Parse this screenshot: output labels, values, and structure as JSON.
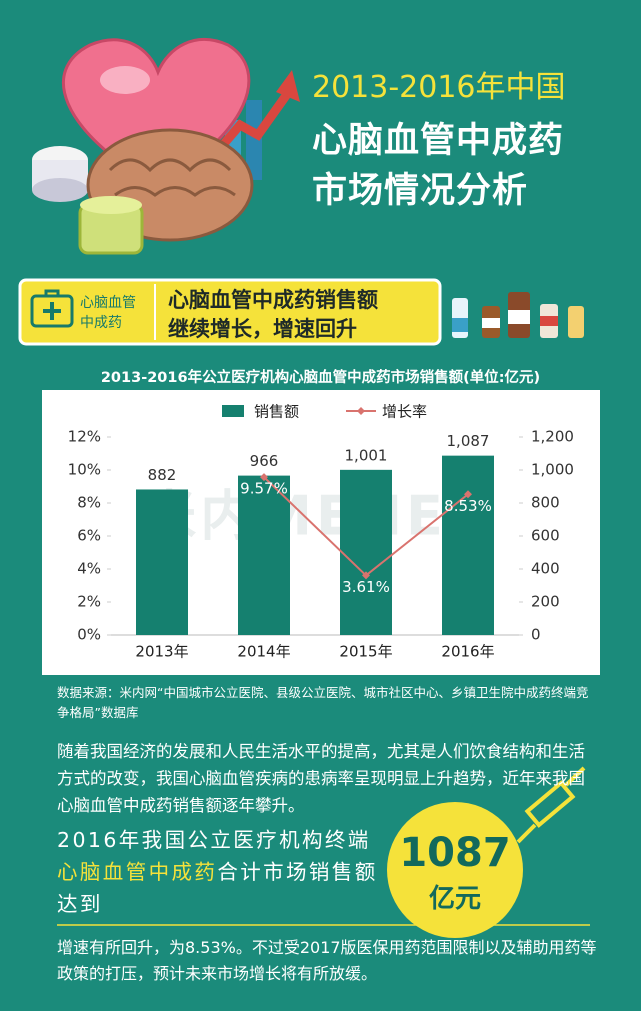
{
  "header": {
    "title_line1": "2013-2016年中国",
    "title_line2": "心脑血管中成药",
    "title_line3": "市场情况分析"
  },
  "banner": {
    "label_lines": [
      "心脑血管",
      "中成药"
    ],
    "headline_lines": [
      "心脑血管中成药销售额",
      "继续增长，增速回升"
    ]
  },
  "chart_data": {
    "type": "bar",
    "title": "2013-2016年公立医疗机构心脑血管中成药市场销售额(单位:亿元)",
    "categories": [
      "2013年",
      "2014年",
      "2015年",
      "2016年"
    ],
    "series": [
      {
        "name": "销售额",
        "type": "bar",
        "axis": "y2",
        "color": "#15806f",
        "values": [
          882,
          966,
          1001,
          1087
        ],
        "value_labels": [
          "882",
          "966",
          "1,001",
          "1,087"
        ]
      },
      {
        "name": "增长率",
        "type": "line",
        "color": "#d9736e",
        "values": [
          null,
          9.57,
          3.61,
          8.53
        ],
        "value_labels": [
          null,
          "9.57%",
          "3.61%",
          "8.53%"
        ]
      }
    ],
    "ylim": [
      0,
      12
    ],
    "yticks": [
      {
        "value": 0,
        "label": "0%"
      },
      {
        "value": 2,
        "label": "2%"
      },
      {
        "value": 4,
        "label": "4%"
      },
      {
        "value": 6,
        "label": "6%"
      },
      {
        "value": 8,
        "label": "8%"
      },
      {
        "value": 10,
        "label": "10%"
      },
      {
        "value": 12,
        "label": "12%"
      }
    ],
    "y2lim": [
      0,
      1200
    ],
    "y2ticks": [
      0,
      200,
      400,
      600,
      800,
      {
        "value": 1000,
        "label": "1,000"
      },
      {
        "value": 1200,
        "label": "1,200"
      }
    ],
    "legend": "top",
    "grid": false,
    "watermark": "米内MENET"
  },
  "source": "数据来源：米内网“中国城市公立医院、县级公立医院、城市社区中心、乡镇卫生院中成药终端竞争格局”数据库",
  "paragraph1": "随着我国经济的发展和人民生活水平的提高，尤其是人们饮食结构和生活方式的改变，我国心脑血管疾病的患病率呈现明显上升趋势，近年来我国心脑血管中成药销售额逐年攀升。",
  "highlight": {
    "before": "2016年我国公立医疗机构终端",
    "emphasis": "心脑血管中成药",
    "after": "合计市场销售额达到"
  },
  "figure": {
    "value": 1087,
    "unit": "亿元"
  },
  "paragraph2": "增速有所回升，为8.53%。不过受2017版医保用药范围限制以及辅助用药等政策的打压，预计未来市场增长将有所放缓。"
}
